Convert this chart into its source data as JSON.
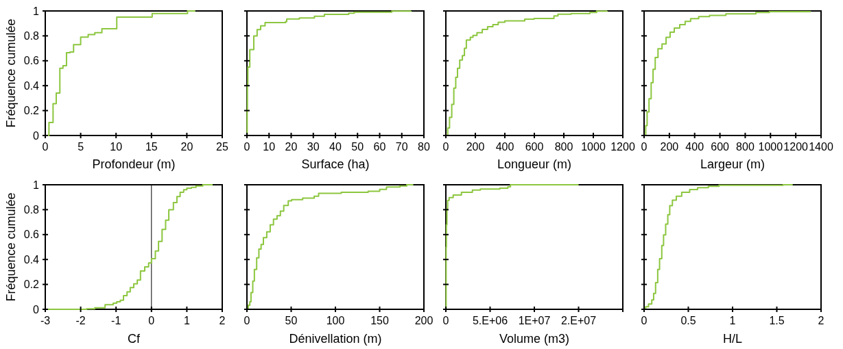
{
  "chart_data": [
    {
      "type": "step",
      "xlabel": "Profondeur (m)",
      "ylabel": "Fréquence cumulée",
      "xlim": [
        0,
        25
      ],
      "xticks": [
        0,
        5,
        10,
        15,
        20,
        25
      ],
      "ylim": [
        0,
        1
      ],
      "yticks": [
        0,
        0.2,
        0.4,
        0.6,
        0.8,
        1
      ],
      "series": [
        {
          "color": "#8cc63f",
          "x": [
            0.3,
            0.52,
            1.1,
            1.55,
            2.06,
            2.5,
            3.0,
            3.5,
            4.0,
            5.0,
            6.06,
            7.0,
            8.0,
            10.1,
            15.1,
            20.1,
            21.2
          ],
          "values": [
            0,
            0.105,
            0.255,
            0.34,
            0.54,
            0.56,
            0.665,
            0.67,
            0.73,
            0.79,
            0.81,
            0.825,
            0.857,
            0.95,
            0.98,
            1,
            1
          ]
        }
      ]
    },
    {
      "type": "step",
      "xlabel": "Surface (ha)",
      "xlim": [
        0,
        80
      ],
      "xticks": [
        0,
        10,
        20,
        30,
        40,
        50,
        60,
        70,
        80
      ],
      "ylim": [
        0,
        1
      ],
      "yticks": [
        0,
        0.2,
        0.4,
        0.6,
        0.8,
        1
      ],
      "tick_labels": "x",
      "series": [
        {
          "color": "#8cc63f",
          "x": [
            0,
            0.1,
            0.2,
            0.4,
            1.3,
            3.1,
            4.6,
            6.2,
            8.2,
            17.5,
            18,
            23.7,
            30.5,
            35,
            46,
            48.5,
            65.5,
            74.2
          ],
          "values": [
            0,
            0.2,
            0.4,
            0.55,
            0.69,
            0.8,
            0.85,
            0.88,
            0.906,
            0.915,
            0.935,
            0.943,
            0.958,
            0.973,
            0.982,
            0.99,
            0.998,
            1
          ]
        }
      ]
    },
    {
      "type": "step",
      "xlabel": "Longueur (m)",
      "xlim": [
        0,
        1200
      ],
      "xticks": [
        0,
        200,
        400,
        600,
        800,
        1000,
        1200
      ],
      "ylim": [
        0,
        1
      ],
      "yticks": [
        0,
        0.2,
        0.4,
        0.6,
        0.8,
        1
      ],
      "tick_labels": "x",
      "series": [
        {
          "color": "#8cc63f",
          "x": [
            0,
            12.6,
            25,
            40,
            54,
            67,
            79,
            94,
            112,
            126,
            139,
            166,
            184,
            211,
            247,
            283,
            319,
            355,
            400,
            535,
            598,
            733,
            760,
            850,
            977,
            1022,
            1094
          ],
          "values": [
            0,
            0.06,
            0.146,
            0.25,
            0.38,
            0.467,
            0.54,
            0.606,
            0.642,
            0.7,
            0.767,
            0.788,
            0.803,
            0.826,
            0.852,
            0.874,
            0.89,
            0.91,
            0.92,
            0.934,
            0.94,
            0.96,
            0.974,
            0.98,
            0.987,
            0.998,
            1
          ]
        }
      ]
    },
    {
      "type": "step",
      "xlabel": "Largeur (m)",
      "xlim": [
        0,
        1400
      ],
      "xticks": [
        0,
        200,
        400,
        600,
        800,
        1000,
        1200,
        1400
      ],
      "ylim": [
        0,
        1
      ],
      "yticks": [
        0,
        0.2,
        0.4,
        0.6,
        0.8,
        1
      ],
      "tick_labels": "x",
      "series": [
        {
          "color": "#8cc63f",
          "x": [
            0,
            13,
            24,
            39,
            56,
            71,
            88,
            110,
            142,
            174,
            206,
            239,
            282,
            325,
            368,
            432,
            518,
            647,
            884,
            991,
            1314
          ],
          "values": [
            0,
            0.08,
            0.19,
            0.296,
            0.424,
            0.531,
            0.627,
            0.696,
            0.735,
            0.788,
            0.83,
            0.863,
            0.89,
            0.916,
            0.938,
            0.955,
            0.964,
            0.976,
            0.987,
            0.994,
            1
          ]
        }
      ]
    },
    {
      "type": "step",
      "xlabel": "Cf",
      "ylabel": "Fréquence cumulée",
      "xlim": [
        -3,
        2
      ],
      "xticks": [
        -3,
        -2,
        -1,
        0,
        1,
        2
      ],
      "ylim": [
        0,
        1
      ],
      "yticks": [
        0,
        0.2,
        0.4,
        0.6,
        0.8,
        1
      ],
      "ref_lines": [
        {
          "axis": "x",
          "value": 0,
          "color": "#000000"
        }
      ],
      "series": [
        {
          "color": "#8cc63f",
          "x": [
            -3,
            -1.83,
            -1.6,
            -1.31,
            -1.08,
            -0.98,
            -0.88,
            -0.79,
            -0.69,
            -0.6,
            -0.5,
            -0.4,
            -0.31,
            -0.19,
            -0.08,
            0.0,
            0.11,
            0.2,
            0.3,
            0.4,
            0.49,
            0.62,
            0.72,
            0.81,
            0.91,
            1.0,
            1.13,
            1.26,
            1.45,
            1.73
          ],
          "values": [
            0,
            0.004,
            0.013,
            0.037,
            0.05,
            0.06,
            0.073,
            0.11,
            0.14,
            0.174,
            0.205,
            0.235,
            0.308,
            0.34,
            0.372,
            0.407,
            0.468,
            0.545,
            0.642,
            0.716,
            0.8,
            0.857,
            0.905,
            0.94,
            0.96,
            0.972,
            0.98,
            0.99,
            1,
            1
          ]
        }
      ]
    },
    {
      "type": "step",
      "xlabel": "Dénivellation (m)",
      "xlim": [
        0,
        200
      ],
      "xticks": [
        0,
        50,
        100,
        150,
        200
      ],
      "ylim": [
        0,
        1
      ],
      "yticks": [
        0,
        0.2,
        0.4,
        0.6,
        0.8,
        1
      ],
      "tick_labels": "x",
      "series": [
        {
          "color": "#8cc63f",
          "x": [
            0,
            1.5,
            3.3,
            4.6,
            6.6,
            8.4,
            11,
            13.5,
            16,
            18.6,
            22.4,
            26.3,
            30,
            34,
            37.8,
            41.6,
            46.7,
            50.5,
            63,
            76,
            81,
            106.6,
            137,
            150,
            157.7,
            173,
            180.6,
            188
          ],
          "values": [
            0,
            0.033,
            0.06,
            0.134,
            0.227,
            0.32,
            0.414,
            0.484,
            0.52,
            0.576,
            0.622,
            0.678,
            0.724,
            0.751,
            0.788,
            0.834,
            0.871,
            0.88,
            0.893,
            0.908,
            0.932,
            0.939,
            0.948,
            0.963,
            0.982,
            0.99,
            1,
            1
          ]
        }
      ]
    },
    {
      "type": "step",
      "xlabel": "Volume (m3)",
      "xlim": [
        0,
        20000000
      ],
      "xticks": [
        0,
        {
          "value": 5000000,
          "label": "5.E+06"
        },
        {
          "value": 10000000,
          "label": "1E+07"
        },
        {
          "value": 15000000,
          "label": "2.E+07"
        },
        {
          "value": 20000000,
          "label": null
        }
      ],
      "ylim": [
        0,
        1
      ],
      "yticks": [
        0,
        0.2,
        0.4,
        0.6,
        0.8,
        1
      ],
      "tick_labels": "x",
      "series": [
        {
          "color": "#8cc63f",
          "x": [
            0,
            30000,
            60000,
            120000,
            200000,
            370000,
            830000,
            1760000,
            3000000,
            3900000,
            6100000,
            7000000,
            7300000,
            15000000
          ],
          "values": [
            0,
            0.5,
            0.68,
            0.81,
            0.875,
            0.897,
            0.918,
            0.94,
            0.957,
            0.966,
            0.972,
            0.983,
            1,
            1
          ]
        }
      ]
    },
    {
      "type": "step",
      "xlabel": "H/L",
      "xlim": [
        0,
        2
      ],
      "xticks": [
        0,
        0.5,
        1,
        1.5,
        2
      ],
      "ylim": [
        0,
        1
      ],
      "yticks": [
        0,
        0.2,
        0.4,
        0.6,
        0.8,
        1
      ],
      "tick_labels": "x",
      "series": [
        {
          "color": "#8cc63f",
          "x": [
            0,
            0.018,
            0.05,
            0.087,
            0.108,
            0.13,
            0.154,
            0.175,
            0.2,
            0.22,
            0.244,
            0.268,
            0.29,
            0.32,
            0.364,
            0.425,
            0.515,
            0.605,
            0.726,
            0.846,
            1.57,
            1.68
          ],
          "values": [
            0,
            0.02,
            0.043,
            0.075,
            0.128,
            0.214,
            0.32,
            0.406,
            0.513,
            0.598,
            0.684,
            0.759,
            0.833,
            0.876,
            0.908,
            0.94,
            0.962,
            0.976,
            0.987,
            0.996,
            1,
            1
          ]
        }
      ]
    }
  ]
}
